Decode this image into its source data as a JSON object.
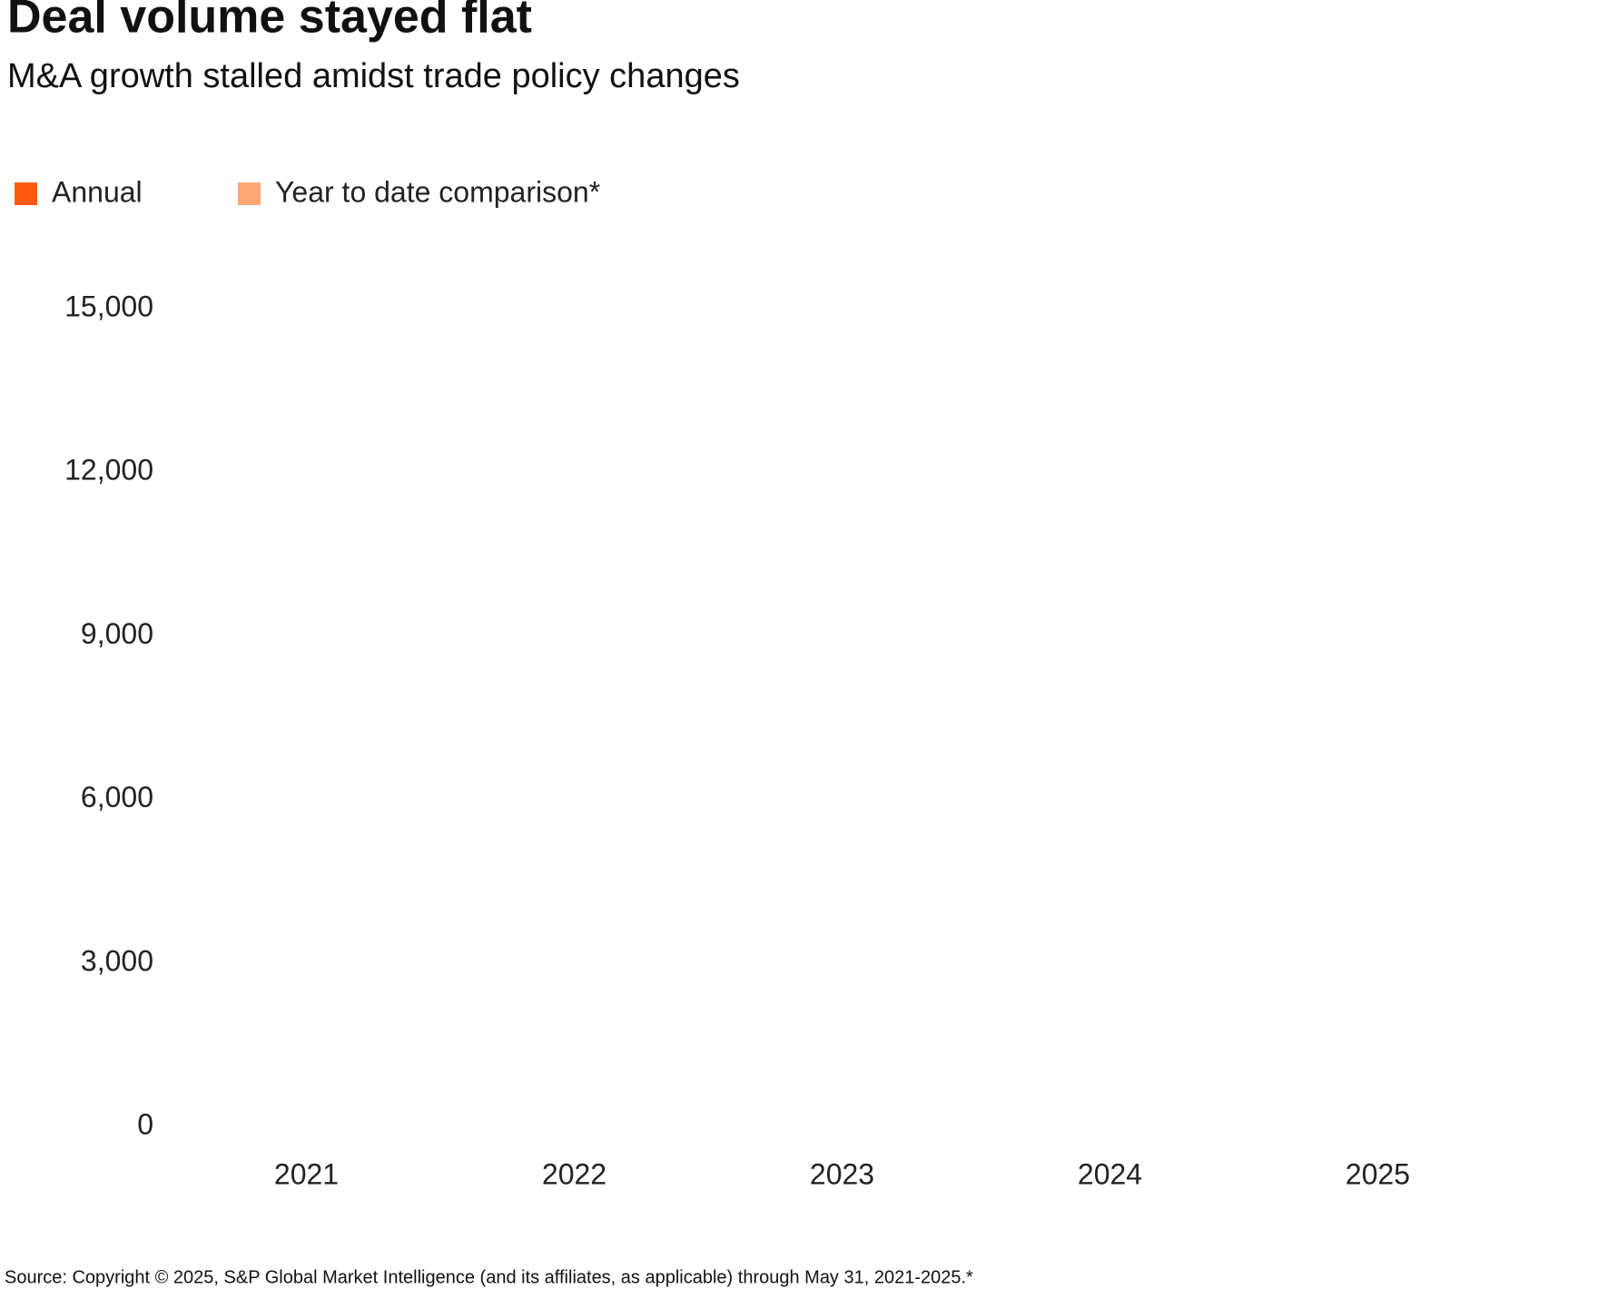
{
  "chart_data": {
    "type": "bar",
    "title": "Deal volume stayed flat",
    "subtitle": "M&A growth stalled amidst trade policy changes",
    "source": "Source: Copyright © 2025, S&P Global Market Intelligence (and its affiliates, as applicable) through May 31, 2021-2025.*",
    "categories": [
      "2021",
      "2022",
      "2023",
      "2024",
      "2025"
    ],
    "series": [
      {
        "name": "Annual",
        "color": "#ff5a0f",
        "values": [
          null,
          null,
          null,
          null,
          null
        ]
      },
      {
        "name": "Year to date comparison*",
        "color": "#ffa873",
        "values": [
          null,
          null,
          null,
          null,
          null
        ]
      }
    ],
    "ylim": [
      0,
      15000
    ],
    "yticks": [
      0,
      {
        "value": 3000,
        "label": "3,000"
      },
      {
        "value": 6000,
        "label": "6,000"
      },
      {
        "value": 9000,
        "label": "9,000"
      },
      {
        "value": 12000,
        "label": "12,000"
      },
      {
        "value": 15000,
        "label": "15,000"
      }
    ],
    "grid": false
  }
}
